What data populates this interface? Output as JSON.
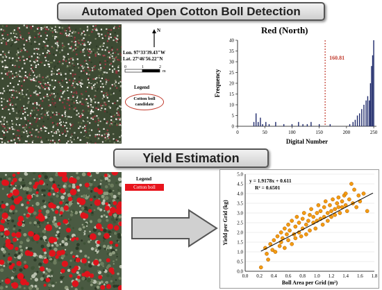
{
  "banners": {
    "top": "Automated Open Cotton Boll Detection",
    "middle": "Yield Estimation"
  },
  "map_annotations": {
    "north_label": "N",
    "lon": "Lon. 97°33'39.43\"W",
    "lat": "Lat. 27°46'56.22\"N",
    "scale_labels": [
      "0",
      "1",
      "2"
    ],
    "scale_unit": "m"
  },
  "legend_top": {
    "title": "Legend",
    "item_label": "Cotton boll candidate"
  },
  "legend_bottom": {
    "title": "Legend",
    "item_label": "Cotton boll",
    "item_color": "#e8141c"
  },
  "colors": {
    "bars": "#1f2a6b",
    "threshold": "#c0392b",
    "points": "#f39c12",
    "point_edge": "#b35c00",
    "arrow_fill": "#d0d0d0",
    "arrow_edge": "#555555"
  },
  "chart_data": [
    {
      "type": "bar",
      "title": "Red (North)",
      "xlabel": "Digital Number",
      "ylabel": "Frequency",
      "xlim": [
        0,
        255
      ],
      "ylim": [
        0,
        40
      ],
      "xticks": [
        0,
        50,
        100,
        150,
        200,
        250
      ],
      "yticks": [
        0,
        5,
        10,
        15,
        20,
        25,
        30,
        35,
        40
      ],
      "threshold": {
        "value": 160.81,
        "label": "160.81"
      },
      "x": [
        30,
        34,
        38,
        42,
        46,
        52,
        58,
        70,
        85,
        100,
        112,
        120,
        128,
        135,
        150,
        170,
        206,
        212,
        216,
        220,
        224,
        228,
        232,
        236,
        239,
        242,
        244,
        246,
        248,
        250
      ],
      "values": [
        2,
        6,
        2,
        4,
        1,
        2,
        1,
        2,
        1,
        1,
        2,
        1,
        1,
        2,
        1,
        1,
        1,
        2,
        3,
        5,
        6,
        8,
        10,
        12,
        14,
        12,
        20,
        28,
        33,
        40
      ]
    },
    {
      "type": "scatter",
      "xlabel": "Boll Area per Grid (m²)",
      "ylabel": "Yield per Grid (kg)",
      "xlim": [
        0,
        1.8
      ],
      "ylim": [
        0,
        5.0
      ],
      "xticks": [
        "0.0",
        "0.2",
        "0.4",
        "0.6",
        "0.8",
        "1.0",
        "1.2",
        "1.4",
        "1.6",
        "1.8"
      ],
      "yticks": [
        "0.0",
        "0.5",
        "1.0",
        "1.5",
        "2.0",
        "2.5",
        "3.0",
        "3.5",
        "4.0",
        "4.5",
        "5.0"
      ],
      "equation": "y = 1.9178x + 0.611",
      "r_squared": "R² = 0.6501",
      "trend": {
        "slope": 1.9178,
        "intercept": 0.611,
        "x_range": [
          0.22,
          1.78
        ]
      },
      "points": [
        [
          0.22,
          0.2
        ],
        [
          0.28,
          1.2
        ],
        [
          0.3,
          0.9
        ],
        [
          0.32,
          0.6
        ],
        [
          0.35,
          1.4
        ],
        [
          0.38,
          1.1
        ],
        [
          0.4,
          1.6
        ],
        [
          0.42,
          1.0
        ],
        [
          0.45,
          1.8
        ],
        [
          0.48,
          1.3
        ],
        [
          0.5,
          2.0
        ],
        [
          0.5,
          1.5
        ],
        [
          0.52,
          1.7
        ],
        [
          0.55,
          2.2
        ],
        [
          0.55,
          1.2
        ],
        [
          0.58,
          1.9
        ],
        [
          0.6,
          2.4
        ],
        [
          0.6,
          1.6
        ],
        [
          0.62,
          2.1
        ],
        [
          0.65,
          1.4
        ],
        [
          0.65,
          2.6
        ],
        [
          0.68,
          1.9
        ],
        [
          0.7,
          2.3
        ],
        [
          0.7,
          1.7
        ],
        [
          0.72,
          2.8
        ],
        [
          0.75,
          2.0
        ],
        [
          0.75,
          2.5
        ],
        [
          0.78,
          1.8
        ],
        [
          0.8,
          2.2
        ],
        [
          0.8,
          2.7
        ],
        [
          0.82,
          3.0
        ],
        [
          0.85,
          2.4
        ],
        [
          0.85,
          1.9
        ],
        [
          0.88,
          2.6
        ],
        [
          0.9,
          2.9
        ],
        [
          0.9,
          2.1
        ],
        [
          0.92,
          3.2
        ],
        [
          0.95,
          2.5
        ],
        [
          0.95,
          2.8
        ],
        [
          0.98,
          2.2
        ],
        [
          1.0,
          3.0
        ],
        [
          1.0,
          2.6
        ],
        [
          1.02,
          3.4
        ],
        [
          1.05,
          2.7
        ],
        [
          1.05,
          3.1
        ],
        [
          1.08,
          2.4
        ],
        [
          1.1,
          3.3
        ],
        [
          1.1,
          2.8
        ],
        [
          1.12,
          3.6
        ],
        [
          1.15,
          3.0
        ],
        [
          1.15,
          2.6
        ],
        [
          1.18,
          3.4
        ],
        [
          1.2,
          3.1
        ],
        [
          1.2,
          2.8
        ],
        [
          1.22,
          3.7
        ],
        [
          1.25,
          3.2
        ],
        [
          1.25,
          2.9
        ],
        [
          1.28,
          3.5
        ],
        [
          1.3,
          3.3
        ],
        [
          1.3,
          3.8
        ],
        [
          1.32,
          3.0
        ],
        [
          1.35,
          3.6
        ],
        [
          1.35,
          3.3
        ],
        [
          1.38,
          3.9
        ],
        [
          1.4,
          3.4
        ],
        [
          1.4,
          4.0
        ],
        [
          1.42,
          3.1
        ],
        [
          1.45,
          3.7
        ],
        [
          1.48,
          4.5
        ],
        [
          1.5,
          3.5
        ],
        [
          1.52,
          4.2
        ],
        [
          1.55,
          3.3
        ],
        [
          1.58,
          3.9
        ],
        [
          1.6,
          3.6
        ],
        [
          1.65,
          4.0
        ],
        [
          1.7,
          3.1
        ]
      ]
    }
  ]
}
